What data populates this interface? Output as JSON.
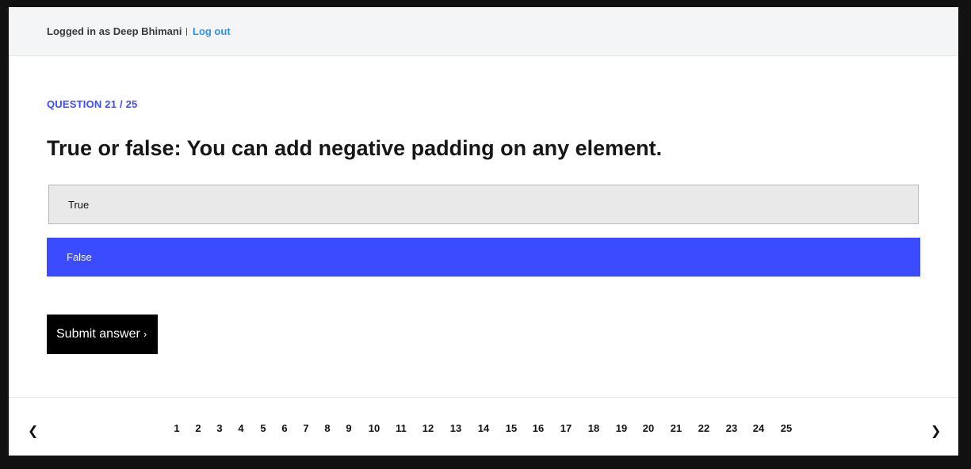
{
  "header": {
    "login_text": "Logged in as Deep Bhimani",
    "logout_label": "Log out"
  },
  "question": {
    "counter": "QUESTION 21 / 25",
    "text": "True or false: You can add negative padding on any element."
  },
  "options": [
    {
      "label": "True",
      "selected": false
    },
    {
      "label": "False",
      "selected": true
    }
  ],
  "submit": {
    "label": "Submit answer",
    "chevron": "›"
  },
  "pagination": {
    "prev": "❮",
    "next": "❯",
    "pages": [
      "1",
      "2",
      "3",
      "4",
      "5",
      "6",
      "7",
      "8",
      "9",
      "10",
      "11",
      "12",
      "13",
      "14",
      "15",
      "16",
      "17",
      "18",
      "19",
      "20",
      "21",
      "22",
      "23",
      "24",
      "25"
    ]
  },
  "colors": {
    "accent": "#3b4bff",
    "link": "#2b96e6"
  }
}
